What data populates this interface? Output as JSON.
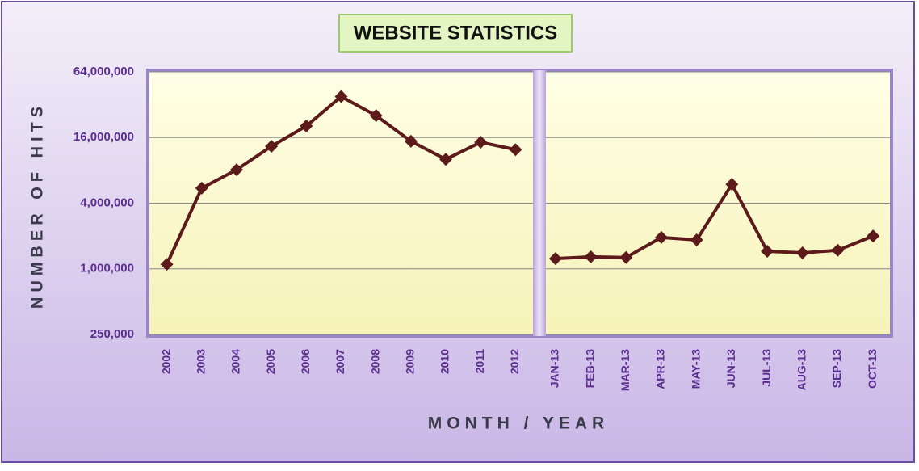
{
  "chart_data": [
    {
      "type": "line",
      "title": "WEBSITE STATISTICS",
      "y_label": "NUMBER OF HITS",
      "x_label": "MONTH / YEAR",
      "categories": [
        "2002",
        "2003",
        "2004",
        "2005",
        "2006",
        "2007",
        "2008",
        "2009",
        "2010",
        "2011",
        "2012"
      ],
      "values": [
        1100000,
        5500000,
        8100000,
        13300000,
        20400000,
        38000000,
        25400000,
        14800000,
        10100000,
        14500000,
        12400000
      ],
      "color": "#5c1a1a",
      "log_scale": true,
      "grid": true,
      "ylim": [
        250000,
        64000000
      ],
      "yticks": [
        {
          "value": 250000,
          "label": "250,000"
        },
        {
          "value": 1000000,
          "label": "1,000,000"
        },
        {
          "value": 4000000,
          "label": "4,000,000"
        },
        {
          "value": 16000000,
          "label": "16,000,000"
        },
        {
          "value": 64000000,
          "label": "64,000,000"
        }
      ]
    },
    {
      "type": "line",
      "categories": [
        "JAN-13",
        "FEB-13",
        "MAR-13",
        "APR-13",
        "MAY-13",
        "JUN-13",
        "JUL-13",
        "AUG-13",
        "SEP-13",
        "OCT-13"
      ],
      "values": [
        1240000,
        1290000,
        1270000,
        1940000,
        1840000,
        5960000,
        1450000,
        1400000,
        1480000,
        2000000
      ],
      "color": "#5c1a1a",
      "log_scale": true,
      "grid": true,
      "ylim": [
        250000,
        64000000
      ],
      "yticks": [
        250000,
        1000000,
        4000000,
        16000000,
        64000000
      ]
    }
  ]
}
